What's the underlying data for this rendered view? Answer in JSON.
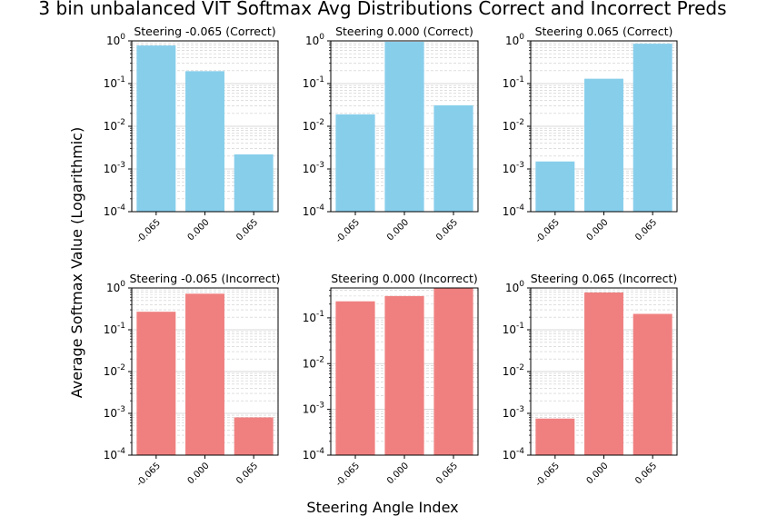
{
  "figure": {
    "title": "3 bin unbalanced VIT Softmax Avg Distributions Correct and Incorrect Preds",
    "xlabel": "Steering Angle Index",
    "ylabel": "Average Softmax Value (Logarithmic)"
  },
  "colors": {
    "correct": "#87CEEB",
    "incorrect": "#F08080",
    "grid": "#cccccc"
  },
  "chart_data": [
    {
      "type": "bar",
      "title": "Steering -0.065 (Correct)",
      "scale": "log",
      "grid": true,
      "categories": [
        "-0.065",
        "0.000",
        "0.065"
      ],
      "values": [
        0.78,
        0.195,
        0.0022
      ],
      "ylim": [
        0.0001,
        1
      ],
      "yticks": [
        "10^-4",
        "10^-3",
        "10^-2",
        "10^-1",
        "10^0"
      ]
    },
    {
      "type": "bar",
      "title": "Steering 0.000 (Correct)",
      "scale": "log",
      "grid": true,
      "categories": [
        "-0.065",
        "0.000",
        "0.065"
      ],
      "values": [
        0.019,
        0.95,
        0.031
      ],
      "ylim": [
        0.0001,
        1
      ],
      "yticks": [
        "10^-4",
        "10^-3",
        "10^-2",
        "10^-1",
        "10^0"
      ]
    },
    {
      "type": "bar",
      "title": "Steering 0.065 (Correct)",
      "scale": "log",
      "grid": true,
      "categories": [
        "-0.065",
        "0.000",
        "0.065"
      ],
      "values": [
        0.0015,
        0.13,
        0.86
      ],
      "ylim": [
        0.0001,
        1
      ],
      "yticks": [
        "10^-4",
        "10^-3",
        "10^-2",
        "10^-1",
        "10^0"
      ]
    },
    {
      "type": "bar",
      "title": "Steering -0.065 (Incorrect)",
      "scale": "log",
      "grid": true,
      "categories": [
        "-0.065",
        "0.000",
        "0.065"
      ],
      "values": [
        0.27,
        0.73,
        0.0008
      ],
      "ylim": [
        0.0001,
        1
      ],
      "yticks": [
        "10^-4",
        "10^-3",
        "10^-2",
        "10^-1",
        "10^0"
      ]
    },
    {
      "type": "bar",
      "title": "Steering 0.000 (Incorrect)",
      "scale": "log",
      "grid": true,
      "categories": [
        "-0.065",
        "0.000",
        "0.065"
      ],
      "values": [
        0.23,
        0.3,
        0.45
      ],
      "ylim": [
        0.0001,
        0.45
      ],
      "yticks": [
        "10^-4",
        "10^-3",
        "10^-2",
        "10^-1"
      ]
    },
    {
      "type": "bar",
      "title": "Steering 0.065 (Incorrect)",
      "scale": "log",
      "grid": true,
      "categories": [
        "-0.065",
        "0.000",
        "0.065"
      ],
      "values": [
        0.00075,
        0.78,
        0.24
      ],
      "ylim": [
        0.0001,
        1
      ],
      "yticks": [
        "10^-4",
        "10^-3",
        "10^-2",
        "10^-1",
        "10^0"
      ]
    }
  ]
}
